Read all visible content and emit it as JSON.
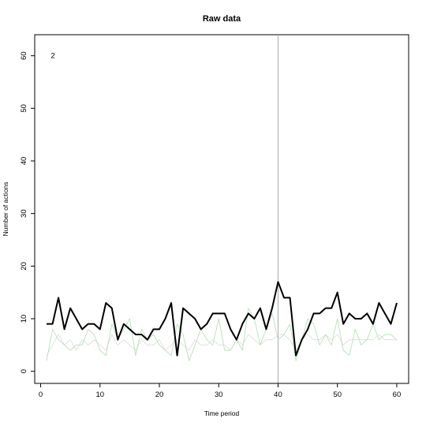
{
  "chart_data": {
    "type": "line",
    "title": "Raw data",
    "xlabel": "Time period",
    "ylabel": "Number of actions",
    "xlim": [
      -1,
      62
    ],
    "ylim": [
      -2.3,
      64
    ],
    "x_ticks": [
      0,
      10,
      20,
      30,
      40,
      50,
      60
    ],
    "y_ticks": [
      0,
      10,
      20,
      30,
      40,
      50,
      60
    ],
    "vline_x": 40,
    "vline_color": "#aaaaaa",
    "annotation": {
      "text": "2",
      "x": 1,
      "y": 60
    },
    "x": [
      1,
      2,
      3,
      4,
      5,
      6,
      7,
      8,
      9,
      10,
      11,
      12,
      13,
      14,
      15,
      16,
      17,
      18,
      19,
      20,
      21,
      22,
      23,
      24,
      25,
      26,
      27,
      28,
      29,
      30,
      31,
      32,
      33,
      34,
      35,
      36,
      37,
      38,
      39,
      40,
      41,
      42,
      43,
      44,
      45,
      46,
      47,
      48,
      49,
      50,
      51,
      52,
      53,
      54,
      55,
      56,
      57,
      58,
      59,
      60
    ],
    "series": [
      {
        "color": "#000000",
        "width": 2,
        "values": [
          9,
          9,
          14,
          8,
          12,
          10,
          8,
          9,
          9,
          8,
          13,
          12,
          6,
          9,
          8,
          7,
          7,
          6,
          8,
          8,
          10,
          13,
          3,
          12,
          11,
          10,
          8,
          9,
          11,
          11,
          11,
          8,
          6,
          9,
          11,
          10,
          12,
          8,
          12,
          17,
          14,
          14,
          3,
          6,
          8,
          11,
          11,
          12,
          12,
          15,
          9,
          11,
          10,
          10,
          11,
          9,
          13,
          11,
          9,
          13
        ]
      },
      {
        "color": "#b9e0b9",
        "width": 0.9,
        "values": [
          2,
          8,
          6,
          5,
          4,
          5,
          5,
          8,
          7,
          4,
          3,
          9,
          6,
          8,
          10,
          3,
          8,
          6,
          7,
          5,
          4,
          3,
          9,
          7,
          2,
          5,
          8,
          6,
          5,
          10,
          4,
          4,
          6,
          4,
          12,
          10,
          5,
          8,
          11,
          6,
          7,
          9,
          2,
          6,
          10,
          9,
          5,
          7,
          5,
          10,
          4,
          3,
          8,
          5,
          6,
          9,
          6,
          7,
          7,
          6
        ]
      },
      {
        "color": "#dcdcdc",
        "width": 0.8,
        "values": [
          3,
          5,
          7,
          5,
          6,
          4,
          6,
          5,
          6,
          5,
          4,
          7,
          5,
          6,
          5,
          4,
          6,
          5,
          5,
          6,
          4,
          5,
          6,
          5,
          4,
          6,
          5,
          5,
          6,
          5,
          5,
          4,
          6,
          5,
          7,
          6,
          5,
          6,
          6,
          7,
          7,
          6,
          4,
          6,
          7,
          6,
          6,
          7,
          6,
          7,
          5,
          6,
          6,
          6,
          6,
          6,
          7,
          6,
          6,
          6
        ]
      }
    ]
  }
}
